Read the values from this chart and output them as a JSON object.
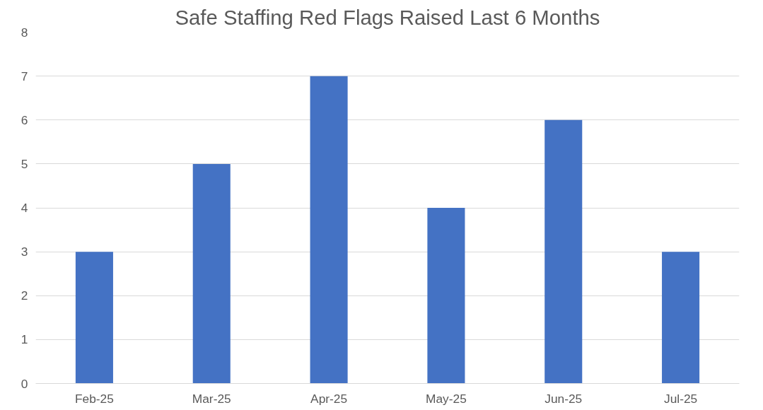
{
  "chart_data": {
    "type": "bar",
    "title": "Safe Staffing Red Flags Raised Last 6 Months",
    "categories": [
      "Feb-25",
      "Mar-25",
      "Apr-25",
      "May-25",
      "Jun-25",
      "Jul-25"
    ],
    "values": [
      3,
      5,
      7,
      4,
      6,
      3
    ],
    "color": "#4472c4",
    "ylim": [
      0,
      8
    ],
    "yticks": [
      0,
      1,
      2,
      3,
      4,
      5,
      6,
      7,
      8
    ],
    "grid": "y"
  }
}
